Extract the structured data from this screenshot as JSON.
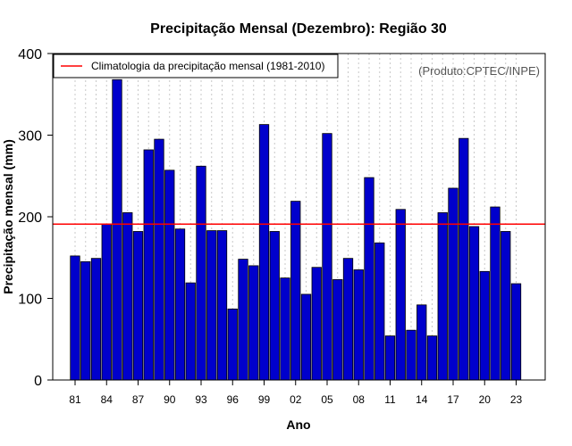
{
  "chart_data": {
    "type": "bar",
    "title": "Precipitação Mensal (Dezembro): Região 30",
    "xlabel": "Ano",
    "ylabel": "Precipitação mensal (mm)",
    "ylim": [
      0,
      400
    ],
    "yticks": [
      0,
      100,
      200,
      300,
      400
    ],
    "categories": [
      "81",
      "82",
      "83",
      "84",
      "85",
      "86",
      "87",
      "88",
      "89",
      "90",
      "91",
      "92",
      "93",
      "94",
      "95",
      "96",
      "97",
      "98",
      "99",
      "00",
      "01",
      "02",
      "03",
      "04",
      "05",
      "06",
      "07",
      "08",
      "09",
      "10",
      "11",
      "12",
      "13",
      "14",
      "15",
      "16",
      "17",
      "18",
      "19",
      "20",
      "21",
      "22",
      "23"
    ],
    "xtick_labels": [
      "81",
      "84",
      "87",
      "90",
      "93",
      "96",
      "99",
      "02",
      "05",
      "08",
      "11",
      "14",
      "17",
      "20",
      "23"
    ],
    "values": [
      152,
      145,
      149,
      191,
      368,
      205,
      182,
      282,
      295,
      257,
      185,
      119,
      262,
      183,
      183,
      87,
      148,
      140,
      313,
      182,
      125,
      219,
      105,
      138,
      302,
      123,
      149,
      135,
      248,
      168,
      54,
      209,
      61,
      92,
      54,
      205,
      235,
      296,
      188,
      133,
      212,
      182,
      118
    ],
    "bar_color": "#0000CC",
    "reference_line": {
      "label": "Climatologia da precipitação mensal (1981-2010)",
      "value": 191,
      "color": "#FF0000"
    },
    "legend_position": "top-left",
    "grid": "vertical-dotted",
    "annotation": "(Produto:CPTEC/INPE)"
  }
}
